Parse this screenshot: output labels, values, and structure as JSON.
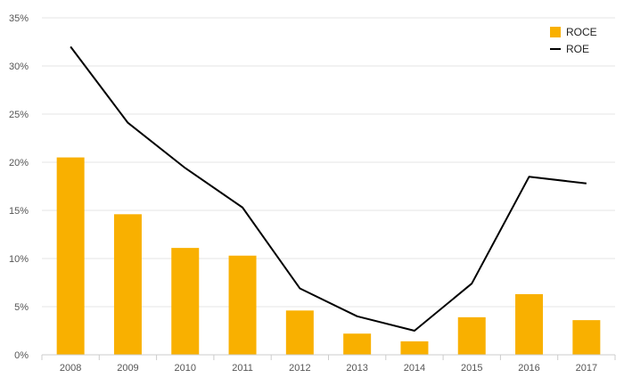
{
  "chart_data": {
    "type": "bar",
    "categories": [
      "2008",
      "2009",
      "2010",
      "2011",
      "2012",
      "2013",
      "2014",
      "2015",
      "2016",
      "2017"
    ],
    "series": [
      {
        "name": "ROCE",
        "type": "bar",
        "color": "#F9B000",
        "values": [
          20.5,
          14.6,
          11.1,
          10.3,
          4.6,
          2.2,
          1.4,
          3.9,
          6.3,
          3.6
        ]
      },
      {
        "name": "ROE",
        "type": "line",
        "color": "#000000",
        "values": [
          32.0,
          24.1,
          19.4,
          15.3,
          6.9,
          4.0,
          2.5,
          7.4,
          18.5,
          17.8
        ]
      }
    ],
    "y_ticks": [
      "0%",
      "5%",
      "10%",
      "15%",
      "20%",
      "25%",
      "30%",
      "35%"
    ],
    "ylim": [
      0,
      35
    ],
    "grid": true,
    "legend_position": "top-right"
  }
}
